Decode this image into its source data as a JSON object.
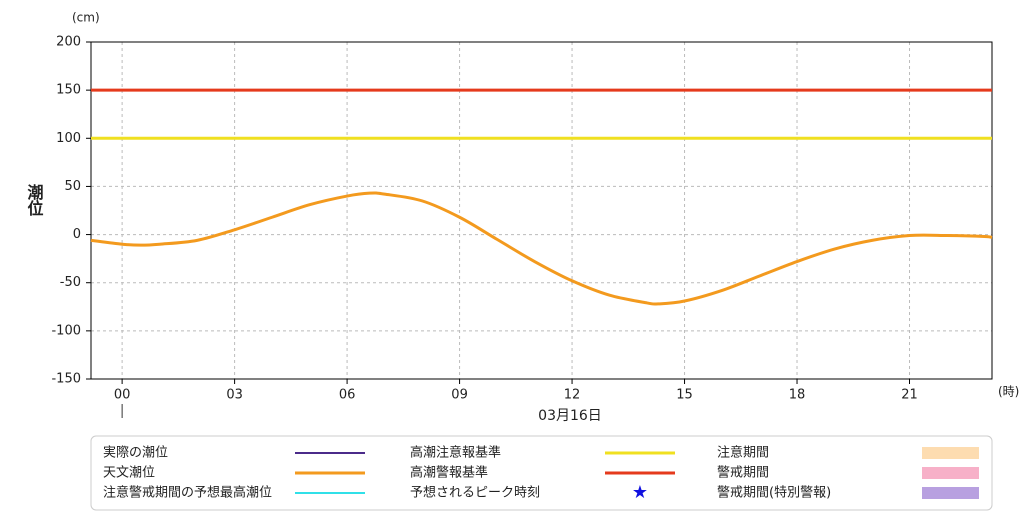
{
  "chart_data": {
    "type": "line",
    "y_unit": "(cm)",
    "x_unit": "(時)",
    "ylabel": "潮位",
    "date": "03月16日",
    "xlim": [
      -0.83,
      23.2
    ],
    "ylim": [
      -150,
      200
    ],
    "yticks": [
      -150,
      -100,
      -50,
      0,
      50,
      100,
      150,
      200
    ],
    "xticks": [
      {
        "value": 0,
        "label": "00"
      },
      {
        "value": 3,
        "label": "03"
      },
      {
        "value": 6,
        "label": "06"
      },
      {
        "value": 9,
        "label": "09"
      },
      {
        "value": 12,
        "label": "12"
      },
      {
        "value": 15,
        "label": "15"
      },
      {
        "value": 18,
        "label": "18"
      },
      {
        "value": 21,
        "label": "21"
      }
    ],
    "grid": true,
    "thresholds": [
      {
        "name": "高潮注意報基準",
        "value": 100,
        "color": "#f0e020"
      },
      {
        "name": "高潮警報基準",
        "value": 150,
        "color": "#e53a1c"
      }
    ],
    "series": [
      {
        "name": "天文潮位",
        "color": "#f39a1e",
        "x": [
          -0.83,
          0,
          0.5,
          1,
          2,
          3,
          4,
          5,
          6,
          6.6,
          7,
          8,
          9,
          10,
          11,
          12,
          13,
          14,
          14.3,
          15,
          16,
          17,
          18,
          19,
          20,
          21,
          22,
          23,
          23.2
        ],
        "values": [
          -6,
          -10,
          -11,
          -10,
          -6,
          5,
          18,
          31,
          40,
          43,
          42,
          35,
          18,
          -5,
          -28,
          -48,
          -63,
          -71,
          -72,
          -69,
          -58,
          -43,
          -28,
          -15,
          -6,
          -1,
          -1,
          -2,
          -3
        ]
      }
    ],
    "legend": [
      {
        "name": "実際の潮位",
        "color": "#4b2b8a",
        "symbol": "line"
      },
      {
        "name": "天文潮位",
        "color": "#f39a1e",
        "symbol": "line"
      },
      {
        "name": "注意警戒期間の予想最高潮位",
        "color": "#30e0e8",
        "symbol": "line"
      },
      {
        "name": "高潮注意報基準",
        "color": "#f0e020",
        "symbol": "line"
      },
      {
        "name": "高潮警報基準",
        "color": "#e53a1c",
        "symbol": "line"
      },
      {
        "name": "予想されるピーク時刻",
        "color": "#1010e0",
        "symbol": "★"
      },
      {
        "name": "注意期間",
        "color": "#fddcb0",
        "symbol": "rect"
      },
      {
        "name": "警戒期間",
        "color": "#f7b0c8",
        "symbol": "rect"
      },
      {
        "name": "警戒期間(特別警報)",
        "color": "#b8a0e0",
        "symbol": "rect"
      }
    ]
  }
}
